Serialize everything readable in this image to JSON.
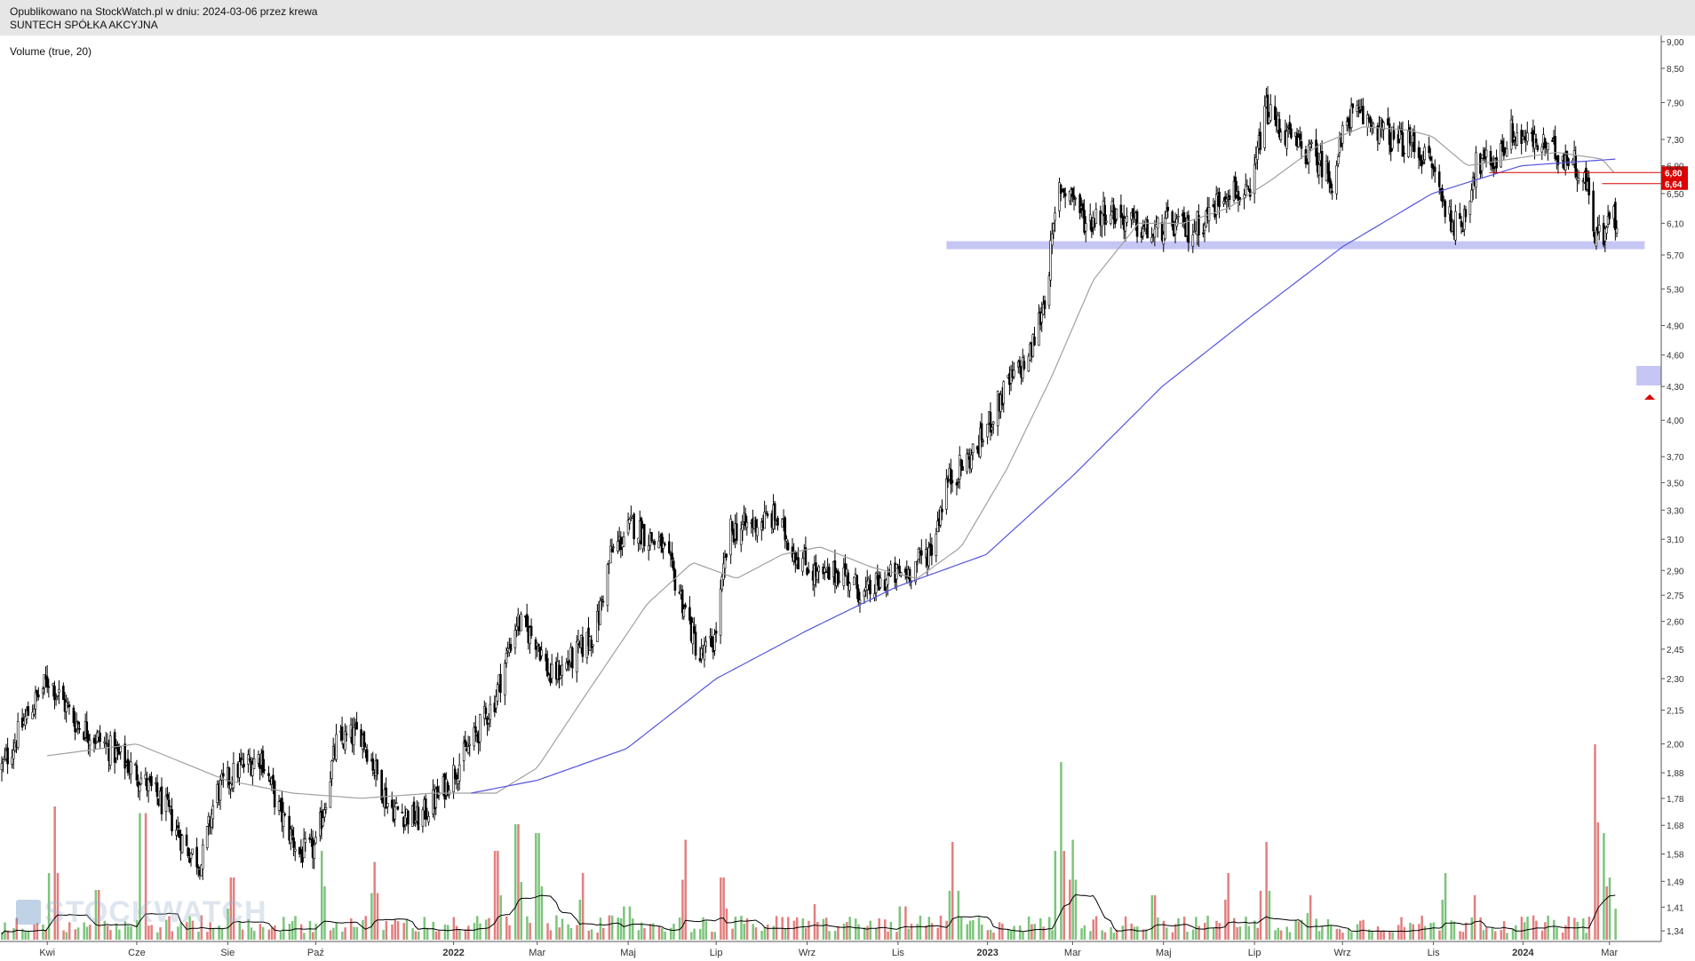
{
  "header": {
    "published": "Opublikowano na StockWatch.pl w dniu: 2024-03-06 przez krewa",
    "company": "SUNTECH SPÓŁKA AKCYJNA"
  },
  "indicator_label": "Volume (true, 20)",
  "watermark": "STOCKWATCH",
  "colors": {
    "candle": "#000000",
    "sma_short": "#a0a0a0",
    "sma_long": "#5555dd",
    "support_band": "#c6c6f4",
    "resistance_line": "#dd0000",
    "price_label_bg": "#dd0000",
    "volume_up": "#7cc47c",
    "volume_down": "#e27f7f",
    "volume_avg": "#000000",
    "axis": "#555555"
  },
  "chart_data": {
    "type": "candlestick",
    "title": "",
    "y_scale": "log",
    "ylim": [
      1.31,
      9.05
    ],
    "y_ticks": [
      "9,00",
      "8,50",
      "7,90",
      "7,30",
      "6,90",
      "6,50",
      "6,10",
      "5,70",
      "5,30",
      "4,90",
      "4,60",
      "4,30",
      "4,00",
      "3,70",
      "3,50",
      "3,30",
      "3,10",
      "2,90",
      "2,75",
      "2,60",
      "2,45",
      "2,30",
      "2,15",
      "2,00",
      "1,88",
      "1,78",
      "1,68",
      "1,58",
      "1,49",
      "1,41",
      "1,34"
    ],
    "x_ticks": [
      "Kwi",
      "Cze",
      "Sie",
      "Paź",
      "2022",
      "Mar",
      "Maj",
      "Lip",
      "Wrz",
      "Lis",
      "2023",
      "Mar",
      "Maj",
      "Lip",
      "Wrz",
      "Lis",
      "2024",
      "Mar"
    ],
    "x_tick_dates": [
      "2021-04-01",
      "2021-06-01",
      "2021-08-02",
      "2021-10-01",
      "2022-01-03",
      "2022-03-01",
      "2022-05-02",
      "2022-07-01",
      "2022-09-01",
      "2022-11-02",
      "2023-01-02",
      "2023-03-01",
      "2023-05-02",
      "2023-07-03",
      "2023-09-01",
      "2023-11-02",
      "2024-01-02",
      "2024-03-01"
    ],
    "date_range": [
      "2021-03-01",
      "2024-03-06"
    ],
    "price_path": [
      [
        "2021-03-01",
        1.9
      ],
      [
        "2021-03-20",
        2.15
      ],
      [
        "2021-04-02",
        2.3
      ],
      [
        "2021-04-20",
        2.1
      ],
      [
        "2021-05-10",
        2.0
      ],
      [
        "2021-06-01",
        1.88
      ],
      [
        "2021-06-20",
        1.75
      ],
      [
        "2021-07-05",
        1.6
      ],
      [
        "2021-07-15",
        1.55
      ],
      [
        "2021-07-25",
        1.8
      ],
      [
        "2021-08-10",
        1.9
      ],
      [
        "2021-08-25",
        1.95
      ],
      [
        "2021-09-05",
        1.75
      ],
      [
        "2021-09-20",
        1.58
      ],
      [
        "2021-10-01",
        1.6
      ],
      [
        "2021-10-15",
        2.0
      ],
      [
        "2021-11-01",
        2.05
      ],
      [
        "2021-11-20",
        1.75
      ],
      [
        "2021-12-10",
        1.7
      ],
      [
        "2021-12-25",
        1.8
      ],
      [
        "2022-01-15",
        2.0
      ],
      [
        "2022-01-31",
        2.2
      ],
      [
        "2022-02-15",
        2.6
      ],
      [
        "2022-03-01",
        2.5
      ],
      [
        "2022-03-10",
        2.3
      ],
      [
        "2022-03-25",
        2.4
      ],
      [
        "2022-04-10",
        2.55
      ],
      [
        "2022-04-20",
        3.0
      ],
      [
        "2022-05-05",
        3.2
      ],
      [
        "2022-05-25",
        3.05
      ],
      [
        "2022-06-05",
        2.8
      ],
      [
        "2022-06-20",
        2.4
      ],
      [
        "2022-06-30",
        2.5
      ],
      [
        "2022-07-10",
        3.15
      ],
      [
        "2022-07-25",
        3.2
      ],
      [
        "2022-08-10",
        3.25
      ],
      [
        "2022-08-25",
        3.0
      ],
      [
        "2022-09-10",
        2.85
      ],
      [
        "2022-09-25",
        2.9
      ],
      [
        "2022-10-10",
        2.75
      ],
      [
        "2022-10-25",
        2.85
      ],
      [
        "2022-11-10",
        2.9
      ],
      [
        "2022-11-25",
        3.05
      ],
      [
        "2022-12-05",
        3.5
      ],
      [
        "2022-12-25",
        3.75
      ],
      [
        "2023-01-15",
        4.3
      ],
      [
        "2023-01-31",
        4.6
      ],
      [
        "2023-02-10",
        5.2
      ],
      [
        "2023-02-20",
        6.6
      ],
      [
        "2023-03-01",
        6.5
      ],
      [
        "2023-03-10",
        6.1
      ],
      [
        "2023-03-25",
        6.3
      ],
      [
        "2023-04-10",
        6.1
      ],
      [
        "2023-04-25",
        5.95
      ],
      [
        "2023-05-05",
        6.1
      ],
      [
        "2023-05-20",
        6.0
      ],
      [
        "2023-06-01",
        6.2
      ],
      [
        "2023-06-15",
        6.6
      ],
      [
        "2023-06-30",
        6.4
      ],
      [
        "2023-07-10",
        7.8
      ],
      [
        "2023-07-20",
        7.5
      ],
      [
        "2023-08-01",
        7.2
      ],
      [
        "2023-08-15",
        7.0
      ],
      [
        "2023-08-25",
        6.7
      ],
      [
        "2023-09-05",
        7.7
      ],
      [
        "2023-09-20",
        7.6
      ],
      [
        "2023-10-05",
        7.3
      ],
      [
        "2023-10-20",
        7.2
      ],
      [
        "2023-11-01",
        6.9
      ],
      [
        "2023-11-10",
        6.3
      ],
      [
        "2023-11-20",
        6.0
      ],
      [
        "2023-12-01",
        6.9
      ],
      [
        "2023-12-15",
        7.0
      ],
      [
        "2023-12-25",
        7.4
      ],
      [
        "2024-01-10",
        7.25
      ],
      [
        "2024-01-25",
        7.1
      ],
      [
        "2024-02-05",
        7.0
      ],
      [
        "2024-02-15",
        6.6
      ],
      [
        "2024-02-20",
        6.0
      ],
      [
        "2024-02-27",
        5.9
      ],
      [
        "2024-03-01",
        6.3
      ],
      [
        "2024-03-06",
        6.1
      ]
    ],
    "sma_short": {
      "period": "",
      "path": [
        [
          "2021-04-01",
          1.95
        ],
        [
          "2021-06-01",
          2.0
        ],
        [
          "2021-08-01",
          1.85
        ],
        [
          "2021-09-15",
          1.8
        ],
        [
          "2021-11-01",
          1.78
        ],
        [
          "2021-12-20",
          1.8
        ],
        [
          "2022-02-01",
          1.8
        ],
        [
          "2022-03-01",
          1.9
        ],
        [
          "2022-04-01",
          2.2
        ],
        [
          "2022-05-15",
          2.7
        ],
        [
          "2022-06-15",
          2.95
        ],
        [
          "2022-07-15",
          2.85
        ],
        [
          "2022-08-15",
          3.0
        ],
        [
          "2022-09-10",
          3.05
        ],
        [
          "2022-10-15",
          2.92
        ],
        [
          "2022-11-15",
          2.85
        ],
        [
          "2022-12-15",
          3.05
        ],
        [
          "2023-01-15",
          3.6
        ],
        [
          "2023-02-15",
          4.4
        ],
        [
          "2023-03-15",
          5.4
        ],
        [
          "2023-04-15",
          6.1
        ],
        [
          "2023-05-15",
          6.1
        ],
        [
          "2023-06-15",
          6.3
        ],
        [
          "2023-07-15",
          6.7
        ],
        [
          "2023-08-15",
          7.2
        ],
        [
          "2023-09-15",
          7.5
        ],
        [
          "2023-10-15",
          7.45
        ],
        [
          "2023-11-01",
          7.35
        ],
        [
          "2023-11-25",
          6.9
        ],
        [
          "2023-12-25",
          7.0
        ],
        [
          "2024-01-25",
          7.1
        ],
        [
          "2024-02-25",
          7.0
        ],
        [
          "2024-03-06",
          6.75
        ]
      ]
    },
    "sma_long": {
      "period": "",
      "path": [
        [
          "2022-01-15",
          1.8
        ],
        [
          "2022-03-01",
          1.85
        ],
        [
          "2022-05-01",
          1.98
        ],
        [
          "2022-07-01",
          2.3
        ],
        [
          "2022-09-01",
          2.55
        ],
        [
          "2022-11-01",
          2.8
        ],
        [
          "2023-01-01",
          3.0
        ],
        [
          "2023-03-01",
          3.55
        ],
        [
          "2023-05-01",
          4.3
        ],
        [
          "2023-07-01",
          5.0
        ],
        [
          "2023-09-01",
          5.8
        ],
        [
          "2023-11-01",
          6.5
        ],
        [
          "2024-01-01",
          6.9
        ],
        [
          "2024-03-06",
          7.0
        ]
      ]
    },
    "support_zone": {
      "low": 5.77,
      "high": 5.87,
      "from": "2022-12-05",
      "to": "2024-03-25"
    },
    "resistance_levels": [
      {
        "value": 6.8,
        "label": "6,80",
        "from": "2023-12-10"
      },
      {
        "value": 6.64,
        "label": "6,64",
        "from": "2024-02-25"
      }
    ],
    "volume": {
      "ylim_share": 0.22,
      "spikes": [
        [
          "2021-04-05",
          0.75,
          "down"
        ],
        [
          "2021-05-05",
          0.28,
          "down"
        ],
        [
          "2021-06-05",
          0.95,
          "up"
        ],
        [
          "2021-08-05",
          0.35,
          "up"
        ],
        [
          "2021-10-05",
          0.4,
          "up"
        ],
        [
          "2021-11-10",
          0.35,
          "up"
        ],
        [
          "2022-02-01",
          0.5,
          "up"
        ],
        [
          "2022-02-15",
          0.65,
          "up"
        ],
        [
          "2022-03-01",
          0.6,
          "up"
        ],
        [
          "2022-04-01",
          0.3,
          "up"
        ],
        [
          "2022-05-01",
          0.25,
          "up"
        ],
        [
          "2022-06-10",
          0.45,
          "down"
        ],
        [
          "2022-07-05",
          0.35,
          "up"
        ],
        [
          "2022-09-05",
          0.2,
          "up"
        ],
        [
          "2022-11-05",
          0.25,
          "down"
        ],
        [
          "2022-12-10",
          0.55,
          "up"
        ],
        [
          "2023-02-20",
          1.0,
          "up"
        ],
        [
          "2023-03-01",
          0.45,
          "up"
        ],
        [
          "2023-04-25",
          0.25,
          "up"
        ],
        [
          "2023-06-15",
          0.3,
          "down"
        ],
        [
          "2023-07-10",
          0.55,
          "up"
        ],
        [
          "2023-08-10",
          0.2,
          "up"
        ],
        [
          "2023-11-10",
          0.3,
          "down"
        ],
        [
          "2023-12-01",
          0.25,
          "up"
        ],
        [
          "2024-02-20",
          0.88,
          "down"
        ],
        [
          "2024-02-25",
          0.6,
          "down"
        ],
        [
          "2024-03-02",
          0.35,
          "up"
        ]
      ]
    }
  }
}
